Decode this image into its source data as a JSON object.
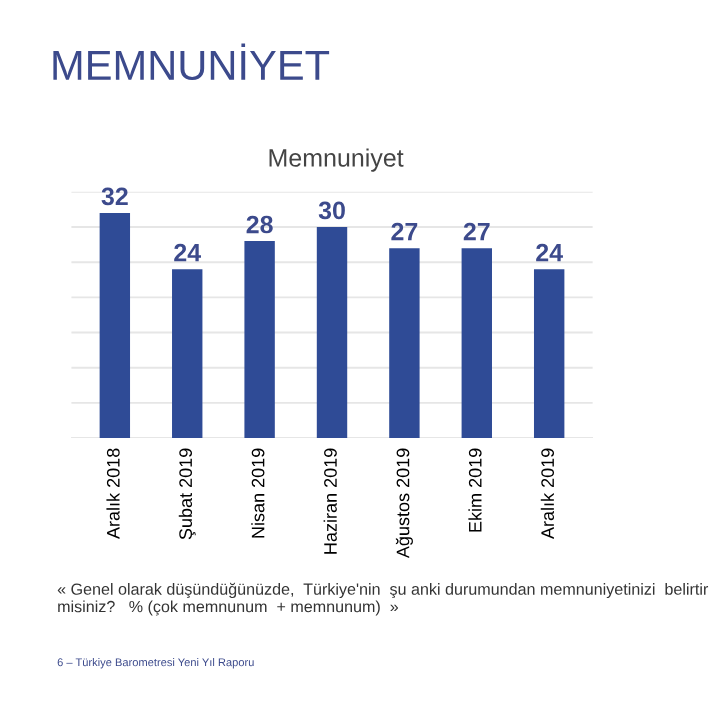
{
  "chart_data": {
    "type": "bar",
    "title": "MEMNUNİYET",
    "subtitle": "Memnuniyet",
    "categories": [
      "Aralık 2018",
      "Şubat 2019",
      "Nisan 2019",
      "Haziran 2019",
      "Ağustos 2019",
      "Ekim 2019",
      "Aralık 2019"
    ],
    "values": [
      32,
      24,
      28,
      30,
      27,
      27,
      24
    ],
    "color": "#2f4b96",
    "ylim": [
      0,
      35
    ],
    "yticks": [
      {
        "value": 0,
        "label": null
      },
      {
        "value": 5,
        "label": null
      },
      {
        "value": 10,
        "label": null
      },
      {
        "value": 15,
        "label": null
      },
      {
        "value": 20,
        "label": null
      },
      {
        "value": 25,
        "label": null
      },
      {
        "value": 30,
        "label": null
      },
      {
        "value": 35,
        "label": null
      }
    ],
    "tick_labels": "x",
    "grid": "y",
    "data_labels": true,
    "annotations": [
      "« Genel olarak düşündüğünüzde,  Türkiye'nin  şu anki durumundan memnuniyetinizi  belirtir misiniz?   % (çok memnunum  + memnunum)  »",
      "6 – Türkiye Barometresi Yeni Yıl Raporu"
    ]
  }
}
